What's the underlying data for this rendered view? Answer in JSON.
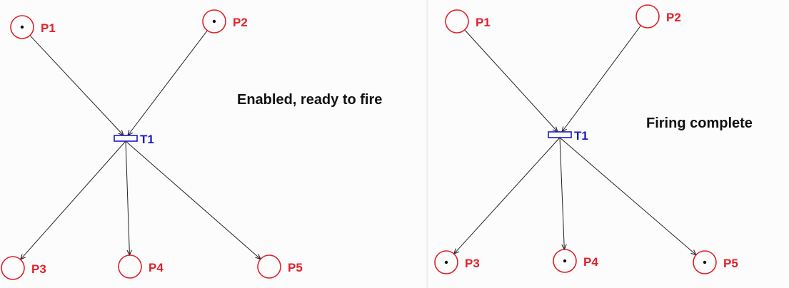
{
  "colors": {
    "place": "#e0202a",
    "transition": "#1a1ad0",
    "arc": "#222222",
    "caption": "#111111"
  },
  "panels": [
    {
      "caption": "Enabled, ready to fire",
      "transition": {
        "label": "T1"
      },
      "places": [
        {
          "id": "P1",
          "label": "P1",
          "tokens": 1
        },
        {
          "id": "P2",
          "label": "P2",
          "tokens": 1
        },
        {
          "id": "P3",
          "label": "P3",
          "tokens": 0
        },
        {
          "id": "P4",
          "label": "P4",
          "tokens": 0
        },
        {
          "id": "P5",
          "label": "P5",
          "tokens": 0
        }
      ],
      "arcs": [
        {
          "from": "P1",
          "to": "T1"
        },
        {
          "from": "P2",
          "to": "T1"
        },
        {
          "from": "T1",
          "to": "P3"
        },
        {
          "from": "T1",
          "to": "P4"
        },
        {
          "from": "T1",
          "to": "P5"
        }
      ]
    },
    {
      "caption": "Firing complete",
      "transition": {
        "label": "T1"
      },
      "places": [
        {
          "id": "P1",
          "label": "P1",
          "tokens": 0
        },
        {
          "id": "P2",
          "label": "P2",
          "tokens": 0
        },
        {
          "id": "P3",
          "label": "P3",
          "tokens": 1
        },
        {
          "id": "P4",
          "label": "P4",
          "tokens": 1
        },
        {
          "id": "P5",
          "label": "P5",
          "tokens": 1
        }
      ],
      "arcs": [
        {
          "from": "P1",
          "to": "T1"
        },
        {
          "from": "P2",
          "to": "T1"
        },
        {
          "from": "T1",
          "to": "P3"
        },
        {
          "from": "T1",
          "to": "P4"
        },
        {
          "from": "T1",
          "to": "P5"
        }
      ]
    }
  ]
}
